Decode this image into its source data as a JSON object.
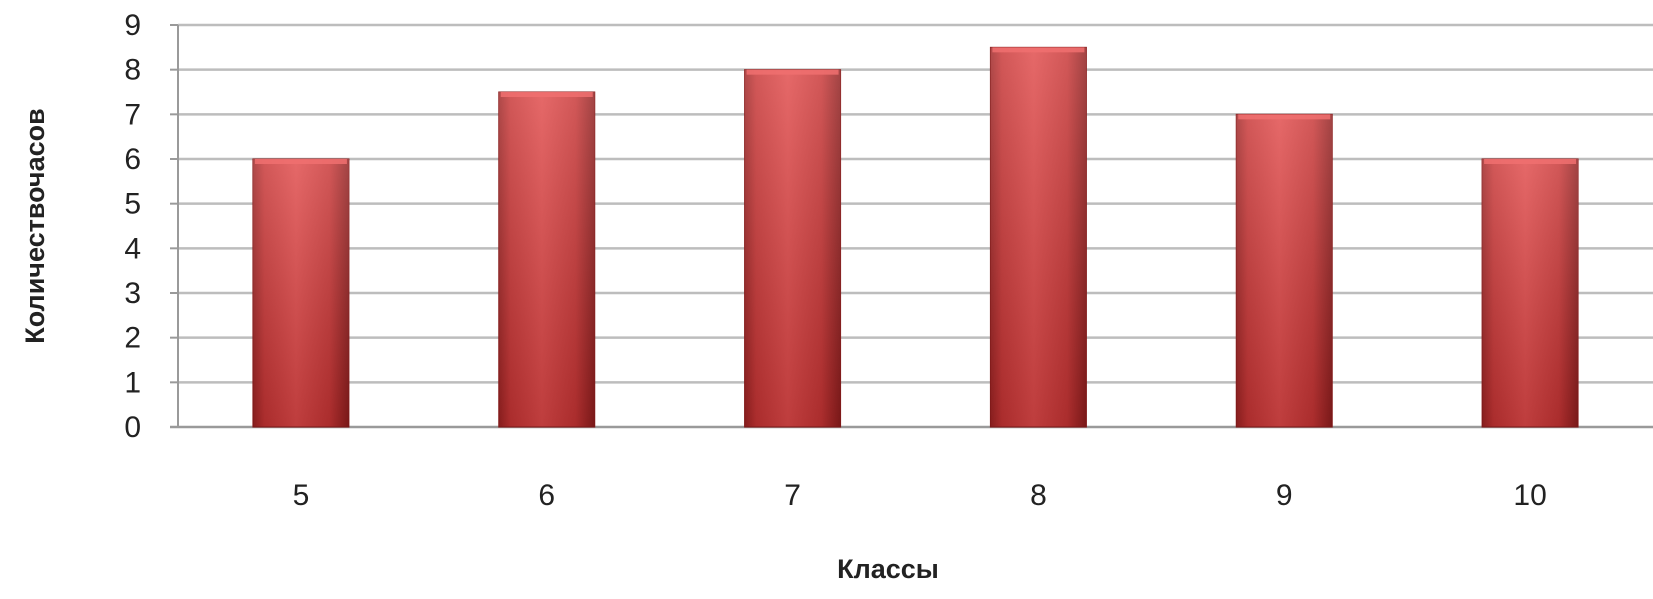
{
  "chart_data": {
    "type": "bar",
    "title": "",
    "xlabel": "Классы",
    "ylabel": "Количествочасов",
    "categories": [
      "5",
      "6",
      "7",
      "8",
      "9",
      "10"
    ],
    "values": [
      6,
      7.5,
      8,
      8.5,
      7,
      6
    ],
    "ylim": [
      0,
      9
    ],
    "yticks": [
      "0",
      "1",
      "2",
      "3",
      "4",
      "5",
      "6",
      "7",
      "8",
      "9"
    ],
    "grid": true,
    "legend": "none",
    "bar_color": "#d63a3a",
    "bar_color_dark": "#9a2020",
    "gridline_color": "#bdbdbd"
  }
}
